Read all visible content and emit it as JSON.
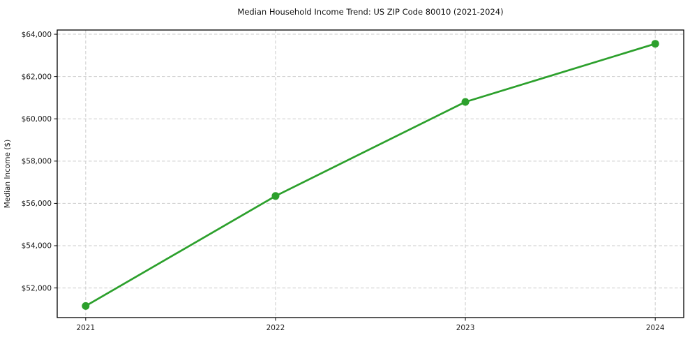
{
  "chart_data": {
    "type": "line",
    "title": "Median Household Income Trend: US ZIP Code 80010 (2021-2024)",
    "xlabel": "",
    "ylabel": "Median Income ($)",
    "x": [
      2021,
      2022,
      2023,
      2024
    ],
    "xtick_labels": [
      "2021",
      "2022",
      "2023",
      "2024"
    ],
    "series": [
      {
        "name": "Median Household Income",
        "values": [
          51150,
          56350,
          60800,
          63550
        ]
      }
    ],
    "yticks": [
      52000,
      54000,
      56000,
      58000,
      60000,
      62000,
      64000
    ],
    "ytick_labels": [
      "$52,000",
      "$54,000",
      "$56,000",
      "$58,000",
      "$60,000",
      "$62,000",
      "$64,000"
    ],
    "ylim": [
      50600,
      64200
    ],
    "grid": true,
    "legend": "none",
    "line_color": "#2ca02c",
    "marker": "circle",
    "grid_color": "#cbcbcb",
    "background_color": "#ffffff",
    "spine_color": "#000000"
  }
}
